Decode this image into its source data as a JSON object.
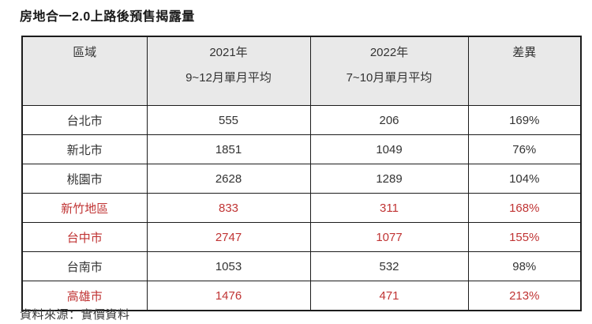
{
  "page": {
    "title": "房地合一2.0上路後預售揭露量",
    "source_note": "資料來源：實價資料"
  },
  "colors": {
    "highlight_red": "#c03434",
    "header_bg": "#e9e9e9",
    "border": "#1c1c1c",
    "text": "#333333",
    "title_text": "#1a1a1a"
  },
  "table": {
    "headers": [
      {
        "key": "region",
        "line1": "區域",
        "line2": ""
      },
      {
        "key": "2021",
        "line1": "2021年",
        "line2": "9~12月單月平均"
      },
      {
        "key": "2022",
        "line1": "2022年",
        "line2": "7~10月單月平均"
      },
      {
        "key": "diff",
        "line1": "差異",
        "line2": ""
      }
    ],
    "rows": [
      {
        "region": "台北市",
        "y2021": "555",
        "y2022": "206",
        "diff": "169%",
        "highlight": false
      },
      {
        "region": "新北市",
        "y2021": "1851",
        "y2022": "1049",
        "diff": "76%",
        "highlight": false
      },
      {
        "region": "桃園市",
        "y2021": "2628",
        "y2022": "1289",
        "diff": "104%",
        "highlight": false
      },
      {
        "region": "新竹地區",
        "y2021": "833",
        "y2022": "311",
        "diff": "168%",
        "highlight": true
      },
      {
        "region": "台中市",
        "y2021": "2747",
        "y2022": "1077",
        "diff": "155%",
        "highlight": true
      },
      {
        "region": "台南市",
        "y2021": "1053",
        "y2022": "532",
        "diff": "98%",
        "highlight": false
      },
      {
        "region": "高雄市",
        "y2021": "1476",
        "y2022": "471",
        "diff": "213%",
        "highlight": true
      }
    ]
  },
  "chart_data": {
    "type": "table",
    "title": "房地合一2.0上路後預售揭露量",
    "columns": [
      "區域",
      "2021年 9~12月單月平均",
      "2022年 7~10月單月平均",
      "差異"
    ],
    "rows": [
      [
        "台北市",
        555,
        206,
        "169%"
      ],
      [
        "新北市",
        1851,
        1049,
        "76%"
      ],
      [
        "桃園市",
        2628,
        1289,
        "104%"
      ],
      [
        "新竹地區",
        833,
        311,
        "168%"
      ],
      [
        "台中市",
        2747,
        1077,
        "155%"
      ],
      [
        "台南市",
        1053,
        532,
        "98%"
      ],
      [
        "高雄市",
        1476,
        471,
        "213%"
      ]
    ],
    "highlighted_rows": [
      "新竹地區",
      "台中市",
      "高雄市"
    ],
    "source": "資料來源：實價資料"
  }
}
